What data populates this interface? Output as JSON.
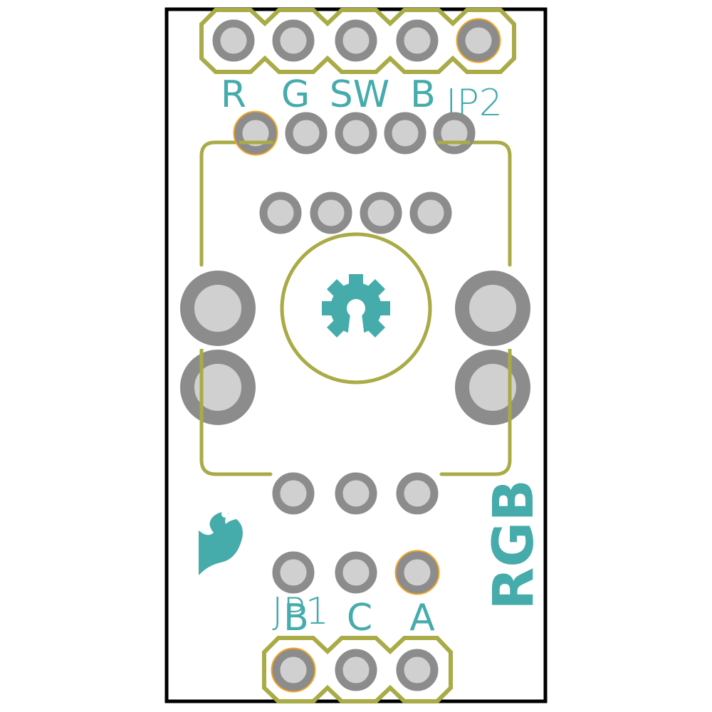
{
  "colors": {
    "background": "#ffffff",
    "board_outline": "#000000",
    "silkscreen": "#a9ab46",
    "pad_ring": "#8c8c8c",
    "pad_fill": "#d0d0d0",
    "pin1_marker": "#f3a623",
    "label_text": "#45abab"
  },
  "labels": {
    "jp2_pins": [
      "R",
      "G",
      "SW",
      "B"
    ],
    "jp2_ref": "JP2",
    "jp1_pins": [
      "B",
      "C",
      "A"
    ],
    "jp1_ref": "JP1",
    "board_name": "RGB"
  },
  "icons": {
    "center": "open-source-hardware-gear-icon",
    "logo": "sparkfun-flame-logo-icon"
  }
}
